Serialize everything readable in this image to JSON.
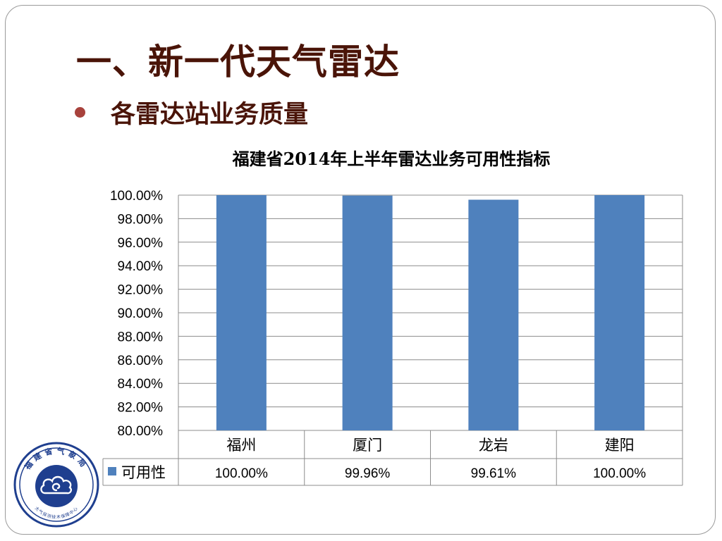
{
  "slide": {
    "title": "一、新一代天气雷达",
    "bullet": "各雷达站业务质量"
  },
  "logo": {
    "top_text": "福建省气象局",
    "bottom_text": "大气探测技术保障中心"
  },
  "colors": {
    "title": "#4a1408",
    "bullet": "#a8423c",
    "bar": "#4f81bd",
    "grid": "#8c8c8c",
    "logo": "#1f3f8f"
  },
  "chart_data": {
    "type": "bar",
    "title": "福建省2014年上半年雷达业务可用性指标",
    "categories": [
      "福州",
      "厦门",
      "龙岩",
      "建阳"
    ],
    "series": [
      {
        "name": "可用性",
        "values": [
          100.0,
          99.96,
          99.61,
          100.0
        ]
      }
    ],
    "value_labels": [
      "100.00%",
      "99.96%",
      "99.61%",
      "100.00%"
    ],
    "ylim": [
      80,
      100
    ],
    "yticks": [
      "80.00%",
      "82.00%",
      "84.00%",
      "86.00%",
      "88.00%",
      "90.00%",
      "92.00%",
      "94.00%",
      "96.00%",
      "98.00%",
      "100.00%"
    ],
    "grid": true,
    "data_table": true
  }
}
